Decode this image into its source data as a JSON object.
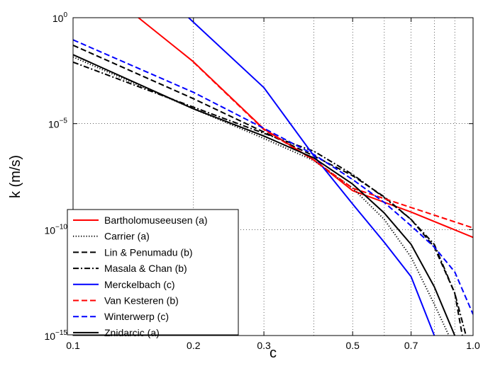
{
  "chart_data": {
    "type": "line",
    "xlabel": "c",
    "ylabel": "k (m/s)",
    "x_scale": "log",
    "y_scale": "log",
    "xlim": [
      0.1,
      1.0
    ],
    "ylim": [
      1e-15,
      1
    ],
    "grid": true,
    "legend_position": "lower-left",
    "x_ticks": [
      {
        "value": 0.1,
        "label": "0.1"
      },
      {
        "value": 0.2,
        "label": "0.2"
      },
      {
        "value": 0.3,
        "label": "0.3"
      },
      {
        "value": 0.5,
        "label": "0.5"
      },
      {
        "value": 0.7,
        "label": "0.7"
      },
      {
        "value": 1.0,
        "label": "1.0"
      }
    ],
    "x_gridlines": [
      0.1,
      0.2,
      0.3,
      0.4,
      0.5,
      0.6,
      0.7,
      0.8,
      0.9,
      1.0
    ],
    "y_ticks": [
      {
        "value": 1e-15,
        "base": "10",
        "exp": "−15"
      },
      {
        "value": 1e-10,
        "base": "10",
        "exp": "−10"
      },
      {
        "value": 1e-05,
        "base": "10",
        "exp": "−5"
      },
      {
        "value": 1,
        "base": "10",
        "exp": "0"
      }
    ],
    "series": [
      {
        "name": "Bartholomuseeusen (a)",
        "color": "#ff0000",
        "dash": "solid",
        "x": [
          0.1457,
          0.2,
          0.3,
          0.4,
          0.5,
          0.7,
          1.0
        ],
        "y": [
          1,
          0.0083,
          5.6e-06,
          1.93e-07,
          6.9e-09,
          6.7e-10,
          4.3e-11
        ]
      },
      {
        "name": "Carrier (a)",
        "color": "#000000",
        "dash": "dotted",
        "x": [
          0.1,
          0.2,
          0.3,
          0.4,
          0.5,
          0.6,
          0.7,
          0.8,
          0.87
        ],
        "y": [
          0.014,
          5e-05,
          2e-06,
          1.8e-07,
          9e-09,
          3e-10,
          5e-12,
          3e-14,
          1e-15
        ]
      },
      {
        "name": "Lin & Penumadu (b)",
        "color": "#000000",
        "dash": "dashed",
        "x": [
          0.1,
          0.2,
          0.3,
          0.4,
          0.5,
          0.6,
          0.7,
          0.8,
          0.9,
          0.94
        ],
        "y": [
          0.05,
          0.00015,
          4e-06,
          3e-07,
          3.5e-08,
          3.5e-09,
          3e-10,
          1.5e-11,
          1e-13,
          1e-15
        ]
      },
      {
        "name": "Masala & Chan (b)",
        "color": "#000000",
        "dash": "dashdot",
        "x": [
          0.1,
          0.2,
          0.3,
          0.4,
          0.5,
          0.6,
          0.7,
          0.8,
          0.9,
          0.96
        ],
        "y": [
          0.008,
          6e-05,
          3.5e-06,
          5e-07,
          4e-08,
          3.2e-09,
          3e-10,
          2e-11,
          1e-13,
          1e-15
        ]
      },
      {
        "name": "Merckelbach (c)",
        "color": "#0000ff",
        "dash": "solid",
        "x": [
          0.1945,
          0.3,
          0.4,
          0.5,
          0.6,
          0.7,
          0.8
        ],
        "y": [
          1,
          0.0005,
          3e-07,
          1.6e-09,
          2.5e-11,
          6e-13,
          1e-15
        ]
      },
      {
        "name": "Van Kesteren (b)",
        "color": "#ff0000",
        "dash": "dashed",
        "x": [
          0.2,
          0.3,
          0.4,
          0.5,
          0.7,
          1.0
        ],
        "y": [
          0.008,
          5.2e-06,
          1.9e-07,
          9e-09,
          1.1e-09,
          1.2e-10
        ]
      },
      {
        "name": "Winterwerp (c)",
        "color": "#0000ff",
        "dash": "dashed",
        "x": [
          0.1,
          0.2,
          0.3,
          0.4,
          0.5,
          0.6,
          0.7,
          0.8,
          0.9,
          1.0
        ],
        "y": [
          0.09,
          0.0003,
          6e-06,
          3.5e-07,
          2.3e-08,
          1.9e-09,
          1.5e-10,
          1.5e-11,
          1e-12,
          1e-14
        ]
      },
      {
        "name": "Znidarcic (a)",
        "color": "#000000",
        "dash": "solid",
        "x": [
          0.1,
          0.2,
          0.3,
          0.4,
          0.5,
          0.6,
          0.7,
          0.8,
          0.9
        ],
        "y": [
          0.018,
          5e-05,
          2.6e-06,
          2.4e-07,
          1.4e-08,
          6e-10,
          2e-11,
          2e-13,
          1e-15
        ]
      }
    ]
  }
}
